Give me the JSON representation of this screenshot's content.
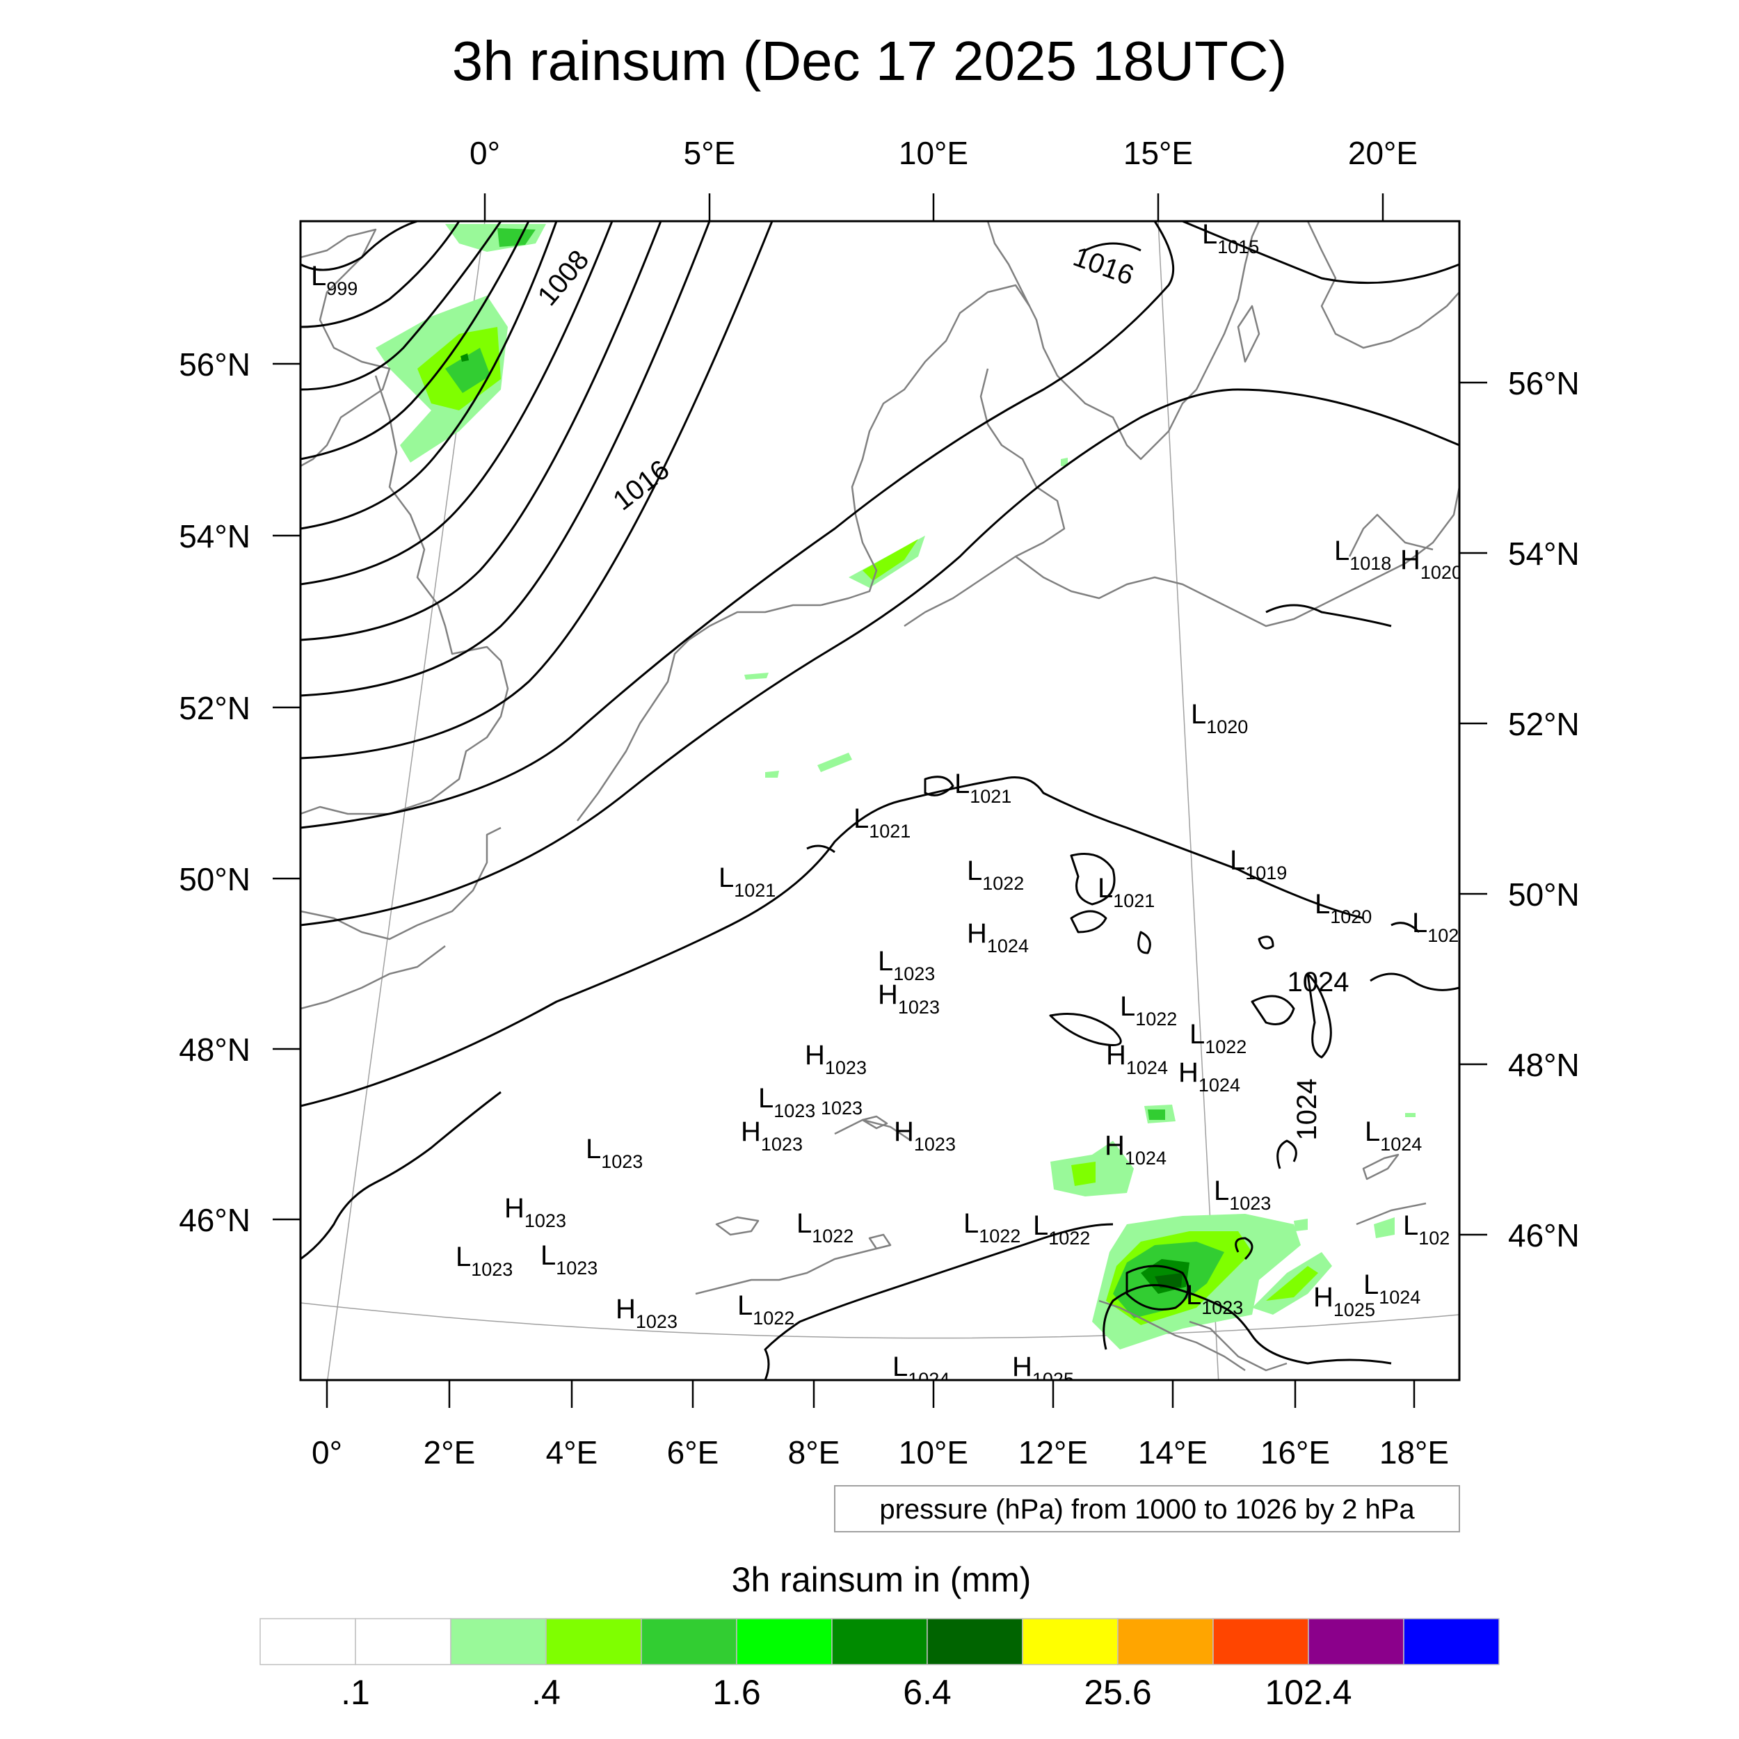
{
  "title": "3h rainsum (Dec 17 2025 18UTC)",
  "axes": {
    "top": [
      "0°",
      "5°E",
      "10°E",
      "15°E",
      "20°E"
    ],
    "left": [
      "56°N",
      "54°N",
      "52°N",
      "50°N",
      "48°N",
      "46°N"
    ],
    "right": [
      "56°N",
      "54°N",
      "52°N",
      "50°N",
      "48°N",
      "46°N"
    ],
    "bottom": [
      "0°",
      "2°E",
      "4°E",
      "6°E",
      "8°E",
      "10°E",
      "12°E",
      "14°E",
      "16°E",
      "18°E"
    ]
  },
  "isobar_labels": [
    "1008",
    "1016",
    "1016",
    "1024",
    "1024"
  ],
  "pressure_centers": [
    {
      "t": "L",
      "v": "999"
    },
    {
      "t": "L",
      "v": "1015"
    },
    {
      "t": "L",
      "v": "1018"
    },
    {
      "t": "H",
      "v": "1020"
    },
    {
      "t": "L",
      "v": "1020"
    },
    {
      "t": "L",
      "v": "1021"
    },
    {
      "t": "L",
      "v": "1021"
    },
    {
      "t": "L",
      "v": "1022"
    },
    {
      "t": "L",
      "v": "1021"
    },
    {
      "t": "L",
      "v": "1021"
    },
    {
      "t": "L",
      "v": "1019"
    },
    {
      "t": "L",
      "v": "1020"
    },
    {
      "t": "L",
      "v": "102"
    },
    {
      "t": "H",
      "v": "1024"
    },
    {
      "t": "L",
      "v": "1023"
    },
    {
      "t": "H",
      "v": "1023"
    },
    {
      "t": "L",
      "v": "1022"
    },
    {
      "t": "L",
      "v": "1022"
    },
    {
      "t": "H",
      "v": "1023"
    },
    {
      "t": "H",
      "v": "1024"
    },
    {
      "t": "H",
      "v": "1024"
    },
    {
      "t": "L",
      "v": "1023"
    },
    {
      "t": "",
      "v": "1023"
    },
    {
      "t": "H",
      "v": "1023"
    },
    {
      "t": "H",
      "v": "1023"
    },
    {
      "t": "H",
      "v": "1024"
    },
    {
      "t": "L",
      "v": "1024"
    },
    {
      "t": "L",
      "v": "1023"
    },
    {
      "t": "L",
      "v": "1023"
    },
    {
      "t": "H",
      "v": "1023"
    },
    {
      "t": "L",
      "v": "1023"
    },
    {
      "t": "L",
      "v": "1023"
    },
    {
      "t": "L",
      "v": "1022"
    },
    {
      "t": "L",
      "v": "1022"
    },
    {
      "t": "L",
      "v": "1022"
    },
    {
      "t": "L",
      "v": "102"
    },
    {
      "t": "L",
      "v": "1023"
    },
    {
      "t": "H",
      "v": "1025"
    },
    {
      "t": "L",
      "v": "1024"
    },
    {
      "t": "H",
      "v": "1023"
    },
    {
      "t": "L",
      "v": "1022"
    },
    {
      "t": "L",
      "v": "1024"
    },
    {
      "t": "H",
      "v": "1025"
    }
  ],
  "info_box": "pressure (hPa) from 1000 to 1026 by 2 hPa",
  "colorbar": {
    "title": "3h rainsum in (mm)",
    "colors": [
      "#ffffff",
      "#ffffff",
      "#99f999",
      "#7fff00",
      "#32cd32",
      "#00ff00",
      "#008b00",
      "#006400",
      "#ffff00",
      "#ffa500",
      "#ff4500",
      "#8b008b",
      "#0000ff"
    ],
    "labels": [
      ".1",
      ".4",
      "1.6",
      "6.4",
      "25.6",
      "102.4"
    ]
  },
  "colors": {
    "coast": "#808080",
    "isobar": "#000000",
    "grid": "#a0a0a0"
  }
}
